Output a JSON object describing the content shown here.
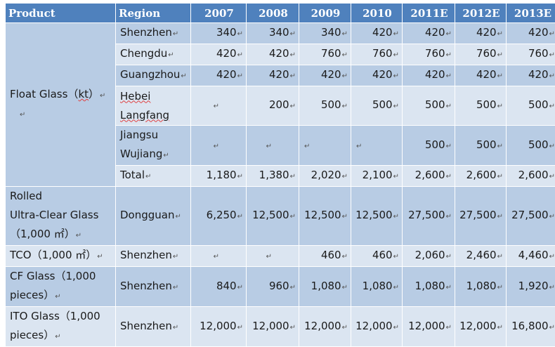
{
  "header": {
    "product": "Product",
    "region": "Region",
    "years": [
      "2007",
      "2008",
      "2009",
      "2010",
      "2011E",
      "2012E",
      "2013E"
    ]
  },
  "float_glass": {
    "label_a": "Float Glass（",
    "label_kt": "kt",
    "label_b": "）",
    "rows": [
      {
        "region": "Shenzhen",
        "values": [
          "340",
          "340",
          "340",
          "420",
          "420",
          "420",
          "420"
        ]
      },
      {
        "region": "Chengdu",
        "values": [
          "420",
          "420",
          "760",
          "760",
          "760",
          "760",
          "760"
        ]
      },
      {
        "region": "Guangzhou",
        "values": [
          "420",
          "420",
          "420",
          "420",
          "420",
          "420",
          "420"
        ]
      },
      {
        "region_l1": "Hebei",
        "region_l2": "Langfang",
        "values": [
          "",
          "200",
          "500",
          "500",
          "500",
          "500",
          "500"
        ]
      },
      {
        "region_l1": "Jiangsu",
        "region_l2": "Wujiang",
        "values": [
          "",
          "",
          "",
          "",
          "500",
          "500",
          "500"
        ]
      },
      {
        "region": "Total",
        "values": [
          "1,180",
          "1,380",
          "2,020",
          "2,100",
          "2,600",
          "2,600",
          "2,600"
        ]
      }
    ]
  },
  "rolled_glass": {
    "label_l1": "Rolled",
    "label_l2": "Ultra-Clear Glass",
    "label_l3": "（1,000 ㎡）",
    "region": "Dongguan",
    "values": [
      "6,250",
      "12,500",
      "12,500",
      "12,500",
      "27,500",
      "27,500",
      "27,500"
    ]
  },
  "tco": {
    "label": "TCO（1,000 ㎡）",
    "region": "Shenzhen",
    "values": [
      "",
      "",
      "460",
      "460",
      "2,060",
      "2,460",
      "4,460"
    ]
  },
  "cf_glass": {
    "label_l1": "CF Glass（1,000",
    "label_l2": "pieces）",
    "region": "Shenzhen",
    "values": [
      "840",
      "960",
      "1,080",
      "1,080",
      "1,080",
      "1,080",
      "1,920"
    ]
  },
  "ito_glass": {
    "label_l1": "ITO Glass（1,000",
    "label_l2": "pieces）",
    "region": "Shenzhen",
    "values": [
      "12,000",
      "12,000",
      "12,000",
      "12,000",
      "12,000",
      "12,000",
      "16,800"
    ]
  },
  "paragraph_mark": "↵",
  "colors": {
    "header": "#4f81bd",
    "dark": "#b8cce4",
    "light": "#dbe5f1"
  }
}
